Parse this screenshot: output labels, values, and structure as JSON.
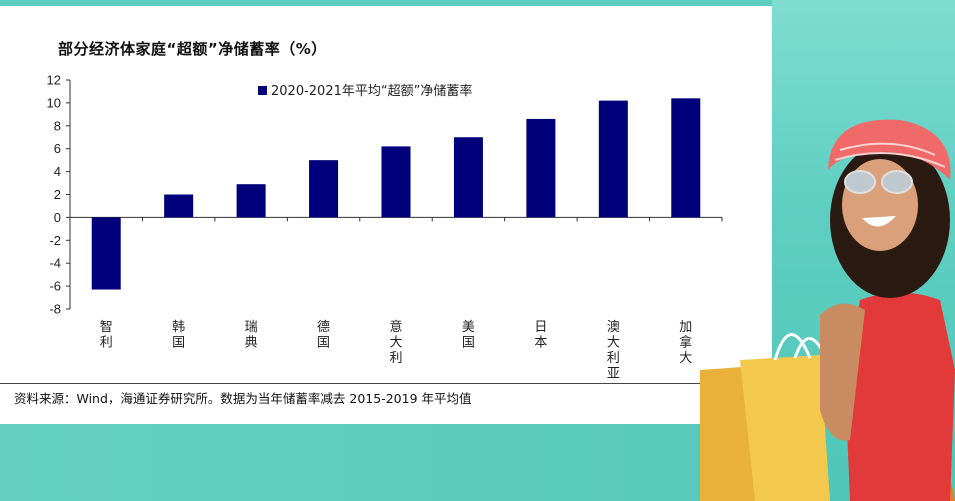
{
  "chart_data": {
    "type": "bar",
    "title": "部分经济体家庭“超额”净储蓄率（%）",
    "categories": [
      "智利",
      "韩国",
      "瑞典",
      "德国",
      "意大利",
      "美国",
      "日本",
      "澳大利亚",
      "加拿大"
    ],
    "series": [
      {
        "name": "2020-2021年平均“超额”净储蓄率",
        "values": [
          -6.3,
          2.0,
          2.9,
          5.0,
          6.2,
          7.0,
          8.6,
          10.2,
          10.4
        ],
        "color": "#00007a"
      }
    ],
    "yticks": [
      "12",
      "10",
      "8",
      "6",
      "4",
      "2",
      "0",
      "-2",
      "-4",
      "-6",
      "-8"
    ],
    "ylim": [
      -8,
      12
    ],
    "grid": false,
    "legend_position": "top"
  },
  "footer": {
    "source": "资料来源：Wind，海通证券研究所。数据为当年储蓄率减去 2015-2019 年平均值"
  },
  "colors": {
    "bar": "#00007a",
    "background_accent": "#5fcfc0"
  }
}
